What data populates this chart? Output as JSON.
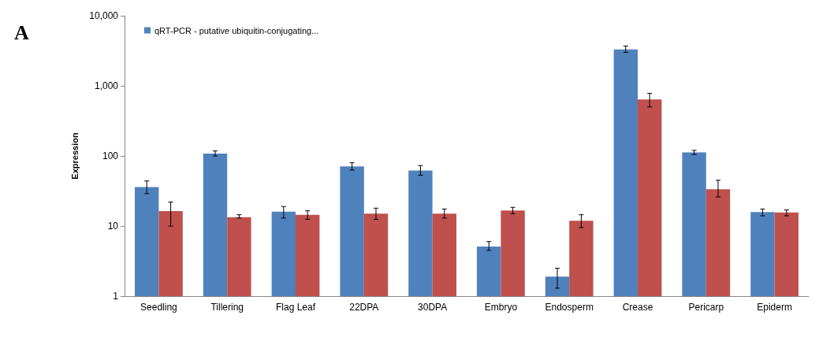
{
  "chart_data": {
    "type": "bar",
    "ylabel": "Expression",
    "annotations": [
      "A"
    ],
    "categories": [
      "Seedling",
      "Tillering",
      "Flag Leaf",
      "22DPA",
      "30DPA",
      "Embryo",
      "Endosperm",
      "Crease",
      "Pericarp",
      "Epiderm"
    ],
    "series": [
      {
        "name": "qRT-PCR - putative ubiquitin-conjugating...",
        "color": "#4f81bd",
        "values": [
          36,
          108,
          16,
          71,
          62,
          5.1,
          1.9,
          3300,
          112,
          15.8
        ],
        "errors": [
          [
            29,
            44
          ],
          [
            100,
            118
          ],
          [
            13,
            19
          ],
          [
            63,
            80
          ],
          [
            53,
            73
          ],
          [
            4.5,
            6
          ],
          [
            1.3,
            2.5
          ],
          [
            3000,
            3700
          ],
          [
            105,
            120
          ],
          [
            14,
            17.5
          ]
        ]
      },
      {
        "color": "#c0504d",
        "values": [
          16.4,
          13.4,
          14.5,
          15,
          15,
          16.7,
          11.9,
          640,
          33.5,
          15.6
        ],
        "errors": [
          [
            10,
            22
          ],
          [
            13,
            14.5
          ],
          [
            12.5,
            16.5
          ],
          [
            12.5,
            18
          ],
          [
            13,
            17.5
          ],
          [
            15,
            18.5
          ],
          [
            9.5,
            14.5
          ],
          [
            500,
            780
          ],
          [
            26,
            45
          ],
          [
            14,
            17
          ]
        ]
      }
    ],
    "log": true,
    "ylim": [
      1,
      10000
    ],
    "yticks": [
      1,
      10,
      100,
      {
        "value": 1000,
        "label": "1,000"
      },
      {
        "value": 10000,
        "label": "10,000"
      }
    ],
    "grid": false,
    "legend": "top left"
  }
}
